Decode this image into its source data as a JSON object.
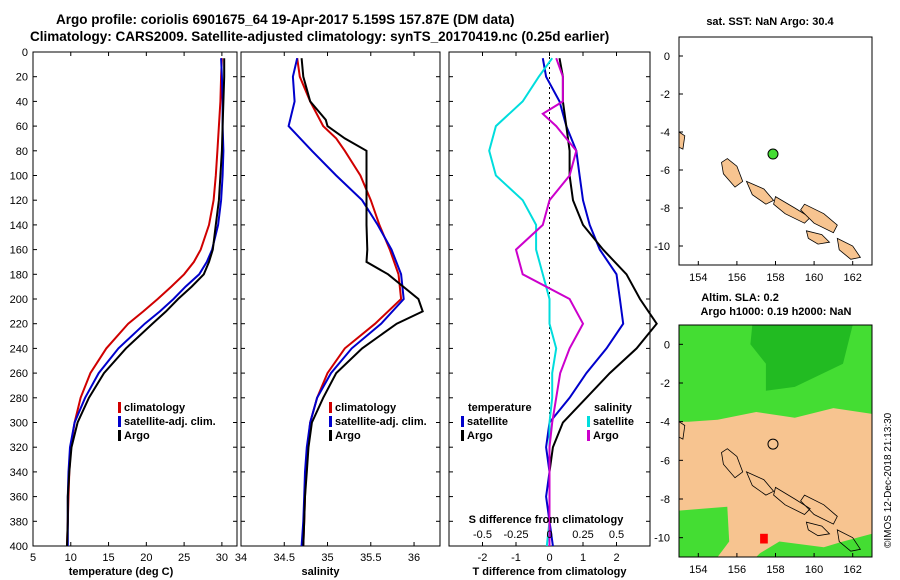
{
  "title": {
    "line1": "Argo profile: coriolis 6901675_64 19-Apr-2017 5.159S 157.87E (DM data)",
    "line2": "Climatology: CARS2009. Satellite-adjusted climatology: synTS_20170419.nc (0.25d earlier)"
  },
  "copyright": "©IMOS 12-Dec-2018 21:13:30",
  "colors": {
    "climatology": "#d00000",
    "satellite": "#0000cc",
    "argo": "#000000",
    "salinity_diff": "#cc00cc",
    "satellite_s": "#00dddd",
    "land": "#f7c490",
    "sla_green": "#44dd33",
    "sla_dark": "#22bb22"
  },
  "chart_data": [
    {
      "type": "line",
      "name": "temperature",
      "xlabel": "temperature (deg C)",
      "ylabel": "",
      "xlim": [
        5,
        32
      ],
      "ylim": [
        400,
        0
      ],
      "xticks": [
        5,
        10,
        15,
        20,
        25,
        30
      ],
      "yticks": [
        0,
        20,
        40,
        60,
        80,
        100,
        120,
        140,
        160,
        180,
        200,
        220,
        240,
        260,
        280,
        300,
        320,
        340,
        360,
        380,
        400
      ],
      "legend": {
        "position": "lower-right",
        "entries": [
          "climatology",
          "satellite-adj. clim.",
          "Argo"
        ]
      },
      "series": [
        {
          "name": "climatology",
          "color": "#d00000",
          "depth": [
            5,
            20,
            40,
            60,
            80,
            100,
            120,
            140,
            160,
            170,
            180,
            190,
            200,
            210,
            220,
            240,
            260,
            280,
            300,
            320,
            340,
            360,
            380,
            400
          ],
          "values": [
            30.0,
            29.9,
            29.8,
            29.6,
            29.4,
            29.2,
            28.9,
            28.3,
            27.2,
            26.3,
            25.0,
            23.3,
            21.5,
            19.6,
            17.6,
            14.7,
            12.6,
            11.3,
            10.5,
            10.0,
            9.8,
            9.7,
            9.6,
            9.5
          ]
        },
        {
          "name": "satellite-adj. clim.",
          "color": "#0000cc",
          "depth": [
            5,
            20,
            40,
            60,
            80,
            100,
            120,
            140,
            160,
            170,
            180,
            190,
            200,
            210,
            220,
            240,
            260,
            280,
            300,
            320,
            340,
            360,
            380,
            400
          ],
          "values": [
            29.9,
            30.0,
            30.1,
            30.1,
            30.2,
            30.1,
            29.9,
            29.5,
            28.7,
            28.0,
            27.0,
            25.2,
            23.6,
            21.8,
            19.8,
            16.3,
            13.7,
            11.9,
            10.5,
            9.9,
            9.7,
            9.6,
            9.6,
            9.6
          ]
        },
        {
          "name": "Argo",
          "color": "#000000",
          "depth": [
            5,
            20,
            40,
            60,
            80,
            100,
            120,
            140,
            160,
            170,
            180,
            190,
            200,
            210,
            220,
            240,
            260,
            280,
            300,
            320,
            340,
            360,
            380,
            400
          ],
          "values": [
            30.3,
            30.3,
            30.2,
            30.1,
            30.0,
            29.8,
            29.6,
            29.2,
            28.8,
            28.3,
            27.6,
            26.0,
            24.2,
            22.6,
            20.8,
            17.3,
            14.4,
            12.4,
            10.9,
            10.1,
            9.8,
            9.6,
            9.6,
            9.5
          ]
        }
      ]
    },
    {
      "type": "line",
      "name": "salinity",
      "xlabel": "salinity",
      "ylabel": "",
      "xlim": [
        34,
        36.3
      ],
      "ylim": [
        400,
        0
      ],
      "xticks": [
        34,
        34.5,
        35,
        35.5,
        36
      ],
      "legend": {
        "position": "lower-right",
        "entries": [
          "climatology",
          "satellite-adj. clim.",
          "Argo"
        ]
      },
      "series": [
        {
          "name": "climatology",
          "color": "#d00000",
          "depth": [
            5,
            20,
            40,
            60,
            70,
            80,
            100,
            120,
            140,
            160,
            180,
            200,
            220,
            240,
            260,
            280,
            300,
            320,
            340,
            360,
            380,
            400
          ],
          "values": [
            34.65,
            34.68,
            34.8,
            34.95,
            35.1,
            35.2,
            35.38,
            35.5,
            35.6,
            35.72,
            35.82,
            35.85,
            35.55,
            35.2,
            35.0,
            34.88,
            34.8,
            34.77,
            34.75,
            34.74,
            34.73,
            34.72
          ]
        },
        {
          "name": "satellite-adj. clim.",
          "color": "#0000cc",
          "depth": [
            5,
            20,
            40,
            60,
            80,
            100,
            120,
            140,
            160,
            180,
            200,
            220,
            240,
            260,
            280,
            300,
            320,
            340,
            360,
            380,
            400
          ],
          "values": [
            34.65,
            34.6,
            34.62,
            34.55,
            34.82,
            35.1,
            35.4,
            35.58,
            35.74,
            35.85,
            35.88,
            35.62,
            35.28,
            35.04,
            34.88,
            34.8,
            34.76,
            34.74,
            34.73,
            34.72,
            34.7
          ]
        },
        {
          "name": "Argo",
          "color": "#000000",
          "depth": [
            5,
            20,
            40,
            55,
            60,
            70,
            80,
            100,
            120,
            140,
            160,
            170,
            180,
            200,
            210,
            220,
            240,
            260,
            280,
            300,
            320,
            340,
            360,
            380,
            400
          ],
          "values": [
            34.7,
            34.72,
            34.8,
            34.98,
            35.0,
            35.2,
            35.45,
            35.45,
            35.45,
            35.45,
            35.46,
            35.45,
            35.7,
            36.05,
            36.1,
            35.8,
            35.4,
            35.1,
            34.95,
            34.82,
            34.78,
            34.76,
            34.74,
            34.73,
            34.72
          ]
        }
      ]
    },
    {
      "type": "line",
      "name": "difference",
      "xlabel": "T difference from climatology",
      "xlabel_top": "S difference from climatology",
      "xlim": [
        -3,
        3
      ],
      "ylim": [
        400,
        0
      ],
      "xticks": [
        -2,
        -1,
        0,
        1,
        2
      ],
      "xticks_s": [
        -0.5,
        -0.25,
        0,
        0.25,
        0.5
      ],
      "legend": {
        "position": "lower",
        "temperature_title": "temperature",
        "salinity_title": "salinity",
        "entries": [
          "satellite",
          "Argo",
          "satellite",
          "Argo"
        ]
      },
      "series": [
        {
          "name": "T satellite",
          "color": "#0000cc",
          "depth": [
            5,
            20,
            40,
            60,
            80,
            100,
            120,
            140,
            160,
            180,
            200,
            220,
            240,
            260,
            280,
            300,
            320,
            340,
            360,
            380,
            400
          ],
          "values": [
            -0.2,
            -0.1,
            0.3,
            0.5,
            0.8,
            0.9,
            1.0,
            1.2,
            1.5,
            2.0,
            2.1,
            2.2,
            1.7,
            1.1,
            0.6,
            0.0,
            -0.1,
            0.0,
            -0.1,
            0.0,
            0.1
          ]
        },
        {
          "name": "T Argo",
          "color": "#000000",
          "depth": [
            5,
            20,
            40,
            60,
            80,
            100,
            120,
            140,
            160,
            180,
            200,
            220,
            240,
            260,
            280,
            300,
            320,
            340,
            360,
            380,
            400
          ],
          "values": [
            0.3,
            0.4,
            0.4,
            0.5,
            0.6,
            0.6,
            0.7,
            1.0,
            1.6,
            2.3,
            2.7,
            3.2,
            2.6,
            1.8,
            1.1,
            0.4,
            0.1,
            0.0,
            0.0,
            0.0,
            0.0
          ]
        },
        {
          "name": "S satellite",
          "color": "#00dddd",
          "depth": [
            5,
            20,
            40,
            60,
            80,
            100,
            120,
            140,
            160,
            180,
            200,
            220,
            240,
            260,
            280,
            300,
            320,
            340,
            360,
            380,
            400
          ],
          "values": [
            0.02,
            -0.08,
            -0.2,
            -0.4,
            -0.45,
            -0.4,
            -0.2,
            -0.1,
            -0.1,
            -0.05,
            0.0,
            0.0,
            0.05,
            0.02,
            0.02,
            0.0,
            0.0,
            0.0,
            0.0,
            0.0,
            -0.02
          ]
        },
        {
          "name": "S Argo",
          "color": "#cc00cc",
          "depth": [
            5,
            20,
            40,
            50,
            60,
            80,
            100,
            120,
            140,
            160,
            180,
            200,
            220,
            240,
            260,
            280,
            300,
            320,
            340,
            360,
            380,
            400
          ],
          "values": [
            0.05,
            0.1,
            0.1,
            -0.05,
            0.05,
            0.2,
            0.15,
            0.0,
            -0.05,
            -0.25,
            -0.2,
            0.15,
            0.25,
            0.15,
            0.08,
            0.05,
            0.02,
            0.0,
            0.0,
            0.0,
            0.0,
            0.0
          ]
        }
      ]
    },
    {
      "type": "map",
      "name": "sst-map",
      "title": "sat. SST: NaN Argo: 30.4",
      "xlim": [
        153,
        163
      ],
      "ylim": [
        -11,
        1
      ],
      "xticks": [
        154,
        156,
        158,
        160,
        162
      ],
      "yticks": [
        0,
        -2,
        -4,
        -6,
        -8,
        -10
      ],
      "argo_position": {
        "lon": 157.87,
        "lat": -5.159
      }
    },
    {
      "type": "map",
      "name": "sla-map",
      "title_line1": "Altim. SLA: 0.2",
      "title_line2": "Argo h1000: 0.19 h2000: NaN",
      "xlim": [
        153,
        163
      ],
      "ylim": [
        -11,
        1
      ],
      "xticks": [
        154,
        156,
        158,
        160,
        162
      ],
      "yticks": [
        0,
        -2,
        -4,
        -6,
        -8,
        -10
      ],
      "argo_position": {
        "lon": 157.87,
        "lat": -5.159
      }
    }
  ]
}
